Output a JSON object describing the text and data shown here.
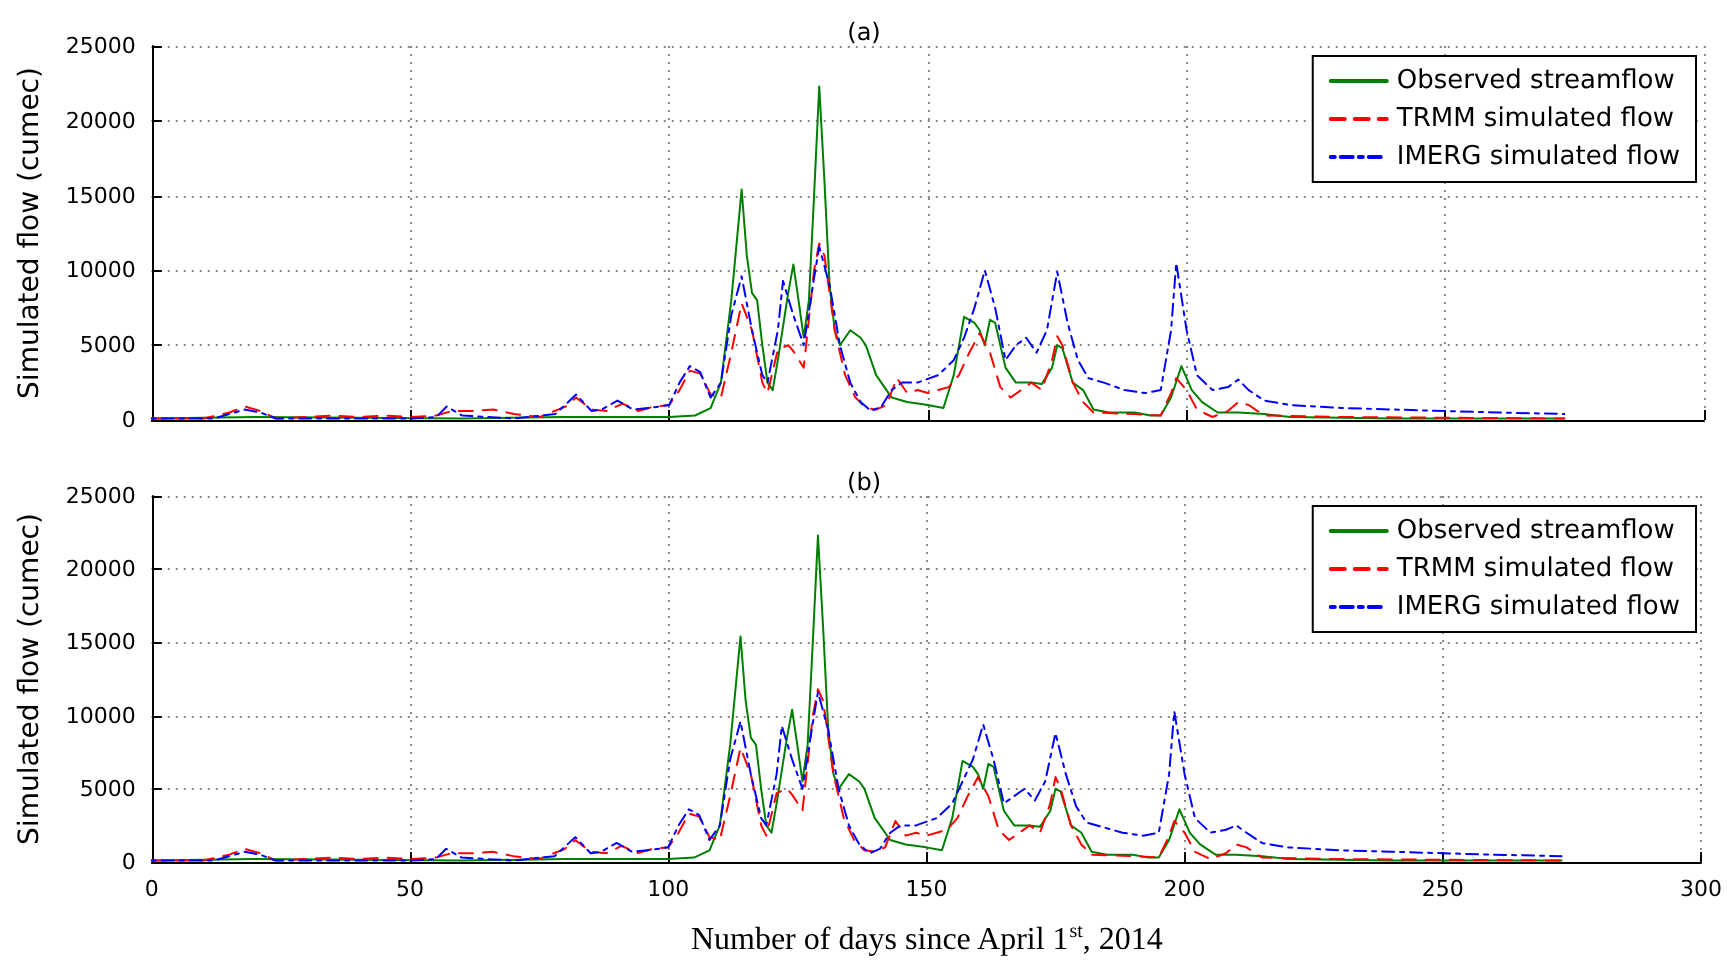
{
  "chart_data": [
    {
      "type": "line",
      "title": "(a)",
      "ylabel": "Simulated flow (cumec)",
      "xlim": [
        0,
        300
      ],
      "xticks": [
        0,
        50,
        100,
        150,
        200,
        250,
        300
      ],
      "ylim": [
        0,
        25000
      ],
      "yticks": [
        0,
        5000,
        10000,
        15000,
        20000,
        25000
      ],
      "grid": true,
      "legend": "top right",
      "marker": "none",
      "tick_labels": "y",
      "series": [
        {
          "name": "Observed streamflow",
          "color": "#008000",
          "line_style": "solid",
          "x": [
            0,
            20,
            60,
            80,
            100,
            105,
            108,
            110,
            112,
            114,
            115,
            116,
            117,
            118,
            119,
            120,
            121,
            123,
            124,
            125,
            126,
            127,
            128,
            129,
            130,
            131,
            132,
            133,
            135,
            137,
            138,
            140,
            143,
            146,
            150,
            153,
            155,
            157,
            159,
            160,
            161,
            162,
            163,
            165,
            167,
            170,
            172,
            174,
            175,
            176,
            178,
            180,
            182,
            185,
            190,
            193,
            195,
            197,
            199,
            201,
            203,
            206,
            210,
            215,
            220,
            240,
            273
          ],
          "values": [
            100,
            200,
            100,
            200,
            200,
            300,
            800,
            2500,
            8000,
            15400,
            11000,
            8500,
            8000,
            5000,
            2500,
            2000,
            4000,
            8500,
            10400,
            8000,
            5500,
            8000,
            15000,
            22300,
            16000,
            9000,
            6000,
            5000,
            6000,
            5500,
            5000,
            3000,
            1500,
            1200,
            1000,
            800,
            3000,
            6900,
            6500,
            6000,
            5000,
            6700,
            6500,
            3500,
            2500,
            2500,
            2400,
            3500,
            5000,
            4800,
            2500,
            2000,
            700,
            500,
            500,
            300,
            300,
            1500,
            3600,
            2000,
            1200,
            500,
            500,
            400,
            200,
            100,
            100
          ]
        },
        {
          "name": "TRMM simulated flow",
          "color": "#ff0000",
          "line_style": "dashed",
          "x": [
            0,
            10,
            15,
            18,
            21,
            24,
            30,
            35,
            40,
            45,
            50,
            55,
            58,
            62,
            66,
            70,
            75,
            80,
            82,
            85,
            88,
            91,
            94,
            97,
            100,
            102,
            104,
            106,
            108,
            110,
            112,
            114,
            116,
            118,
            119,
            121,
            123,
            124,
            126,
            128,
            129,
            130,
            132,
            134,
            136,
            138,
            140,
            142,
            144,
            146,
            148,
            150,
            152,
            154,
            156,
            158,
            160,
            162,
            164,
            166,
            168,
            170,
            172,
            174,
            175,
            176,
            178,
            180,
            182,
            190,
            195,
            197,
            198,
            200,
            202,
            205,
            208,
            210,
            212,
            215,
            230,
            273
          ],
          "values": [
            100,
            100,
            500,
            900,
            600,
            100,
            200,
            300,
            200,
            300,
            200,
            300,
            600,
            600,
            700,
            400,
            200,
            900,
            1500,
            700,
            600,
            1100,
            600,
            900,
            1000,
            2000,
            3300,
            3100,
            1700,
            1500,
            4500,
            7800,
            6000,
            2500,
            1800,
            4700,
            5000,
            4600,
            3500,
            10000,
            11800,
            11000,
            6000,
            3000,
            1500,
            800,
            700,
            1000,
            2800,
            1800,
            2000,
            1800,
            2000,
            2200,
            3000,
            4500,
            5800,
            4500,
            2200,
            1500,
            2000,
            2500,
            2000,
            4000,
            5600,
            5000,
            2500,
            1200,
            500,
            400,
            300,
            1800,
            2800,
            2000,
            700,
            200,
            600,
            1200,
            1000,
            300,
            200,
            100
          ]
        },
        {
          "name": "IMERG simulated flow",
          "color": "#0000ff",
          "line_style": "dotted",
          "x": [
            0,
            12,
            16,
            18,
            21,
            24,
            50,
            55,
            57,
            60,
            70,
            78,
            82,
            85,
            87,
            90,
            93,
            96,
            100,
            102,
            104,
            106,
            108,
            110,
            112,
            114,
            116,
            118,
            119,
            121,
            122,
            124,
            126,
            128,
            129,
            131,
            133,
            135,
            137,
            139,
            141,
            143,
            145,
            148,
            152,
            155,
            157,
            159,
            161,
            163,
            165,
            167,
            169,
            171,
            173,
            175,
            177,
            179,
            181,
            184,
            188,
            192,
            195,
            197,
            198,
            200,
            202,
            205,
            208,
            210,
            212,
            215,
            220,
            230,
            240,
            250,
            260,
            273
          ],
          "values": [
            100,
            100,
            500,
            700,
            500,
            100,
            100,
            200,
            900,
            300,
            100,
            400,
            1700,
            600,
            700,
            1300,
            700,
            800,
            1000,
            2500,
            3600,
            3200,
            1500,
            2500,
            7000,
            9600,
            6000,
            3000,
            2500,
            6000,
            9300,
            7000,
            5000,
            9500,
            11600,
            9000,
            5000,
            2500,
            1200,
            600,
            900,
            2000,
            2500,
            2500,
            3000,
            4000,
            5500,
            7500,
            10000,
            7500,
            4000,
            5000,
            5500,
            4500,
            6000,
            9900,
            6500,
            4000,
            2800,
            2500,
            2000,
            1800,
            2000,
            6000,
            10500,
            6000,
            3000,
            2000,
            2200,
            2700,
            2000,
            1300,
            1000,
            800,
            700,
            600,
            500,
            400
          ]
        }
      ]
    },
    {
      "type": "line",
      "title": "(b)",
      "xlabel": "Number of days since April 1$^{st}$, 2014",
      "ylabel": "Simulated flow (cumec)",
      "xlim": [
        0,
        300
      ],
      "xticks": [
        0,
        50,
        100,
        150,
        200,
        250,
        300
      ],
      "ylim": [
        0,
        25000
      ],
      "yticks": [
        0,
        5000,
        10000,
        15000,
        20000,
        25000
      ],
      "grid": true,
      "legend": "top right",
      "marker": "none",
      "series": [
        {
          "name": "Observed streamflow",
          "color": "#008000",
          "line_style": "solid",
          "x": [
            0,
            20,
            60,
            80,
            100,
            105,
            108,
            110,
            112,
            114,
            115,
            116,
            117,
            118,
            119,
            120,
            121,
            123,
            124,
            125,
            126,
            127,
            128,
            129,
            130,
            131,
            132,
            133,
            135,
            137,
            138,
            140,
            143,
            146,
            150,
            153,
            155,
            157,
            159,
            160,
            161,
            162,
            163,
            165,
            167,
            170,
            172,
            174,
            175,
            176,
            178,
            180,
            182,
            185,
            190,
            193,
            195,
            197,
            199,
            201,
            203,
            206,
            210,
            215,
            220,
            240,
            273
          ],
          "values": [
            100,
            200,
            100,
            200,
            200,
            300,
            800,
            2500,
            8000,
            15400,
            11000,
            8500,
            8000,
            5000,
            2500,
            2000,
            4000,
            8500,
            10400,
            8000,
            5500,
            8000,
            15000,
            22300,
            16000,
            9000,
            6000,
            5000,
            6000,
            5500,
            5000,
            3000,
            1500,
            1200,
            1000,
            800,
            3000,
            6900,
            6500,
            6000,
            5000,
            6700,
            6500,
            3500,
            2500,
            2500,
            2400,
            3500,
            5000,
            4800,
            2500,
            2000,
            700,
            500,
            500,
            300,
            300,
            1500,
            3600,
            2000,
            1200,
            500,
            500,
            400,
            200,
            100,
            100
          ]
        },
        {
          "name": "TRMM simulated flow",
          "color": "#ff0000",
          "line_style": "dashed",
          "x": [
            0,
            10,
            15,
            18,
            21,
            24,
            30,
            35,
            40,
            45,
            50,
            55,
            58,
            62,
            66,
            70,
            75,
            80,
            82,
            85,
            88,
            91,
            94,
            97,
            100,
            102,
            104,
            106,
            108,
            110,
            112,
            114,
            116,
            118,
            119,
            121,
            123,
            124,
            126,
            128,
            129,
            130,
            132,
            134,
            136,
            138,
            140,
            142,
            144,
            146,
            148,
            150,
            152,
            154,
            156,
            158,
            160,
            162,
            164,
            166,
            168,
            170,
            172,
            174,
            175,
            176,
            178,
            180,
            182,
            190,
            195,
            197,
            198,
            200,
            202,
            205,
            208,
            210,
            212,
            215,
            230,
            273
          ],
          "values": [
            100,
            100,
            500,
            900,
            600,
            100,
            200,
            300,
            200,
            300,
            200,
            300,
            600,
            600,
            700,
            400,
            200,
            900,
            1500,
            700,
            600,
            1100,
            600,
            900,
            1000,
            2000,
            3300,
            3100,
            1700,
            1500,
            4500,
            7800,
            6000,
            2500,
            1800,
            4700,
            5000,
            4600,
            3500,
            10000,
            11800,
            11000,
            6000,
            3000,
            1500,
            800,
            700,
            1000,
            2800,
            1800,
            2000,
            1800,
            2000,
            2200,
            3000,
            4500,
            5800,
            4500,
            2200,
            1500,
            2000,
            2500,
            2000,
            4000,
            5800,
            5000,
            2500,
            1200,
            500,
            400,
            300,
            1800,
            2800,
            2000,
            700,
            200,
            600,
            1200,
            1000,
            300,
            200,
            100
          ]
        },
        {
          "name": "IMERG simulated flow",
          "color": "#0000ff",
          "line_style": "dotted",
          "x": [
            0,
            12,
            16,
            18,
            21,
            24,
            50,
            55,
            57,
            60,
            70,
            78,
            82,
            85,
            87,
            90,
            93,
            96,
            100,
            102,
            104,
            106,
            108,
            110,
            112,
            114,
            116,
            118,
            119,
            121,
            122,
            124,
            126,
            128,
            129,
            131,
            133,
            135,
            137,
            139,
            141,
            143,
            145,
            148,
            152,
            155,
            157,
            159,
            161,
            163,
            165,
            167,
            169,
            171,
            173,
            175,
            177,
            179,
            181,
            184,
            188,
            192,
            195,
            197,
            198,
            200,
            202,
            205,
            208,
            210,
            212,
            215,
            220,
            230,
            240,
            250,
            260,
            273
          ],
          "values": [
            100,
            100,
            500,
            700,
            500,
            100,
            100,
            200,
            900,
            300,
            100,
            400,
            1700,
            600,
            700,
            1300,
            700,
            800,
            1000,
            2500,
            3600,
            3200,
            1500,
            2500,
            7000,
            9600,
            6000,
            3000,
            2500,
            6000,
            9300,
            7000,
            5000,
            9500,
            11600,
            9000,
            5000,
            2500,
            1200,
            600,
            900,
            2000,
            2500,
            2500,
            3000,
            4000,
            5500,
            7000,
            9400,
            7000,
            4000,
            4500,
            5000,
            4200,
            5500,
            8800,
            6000,
            3800,
            2700,
            2400,
            2000,
            1800,
            2000,
            6000,
            10300,
            6000,
            3000,
            2000,
            2200,
            2500,
            2000,
            1300,
            1000,
            800,
            700,
            600,
            500,
            400
          ]
        }
      ]
    }
  ]
}
